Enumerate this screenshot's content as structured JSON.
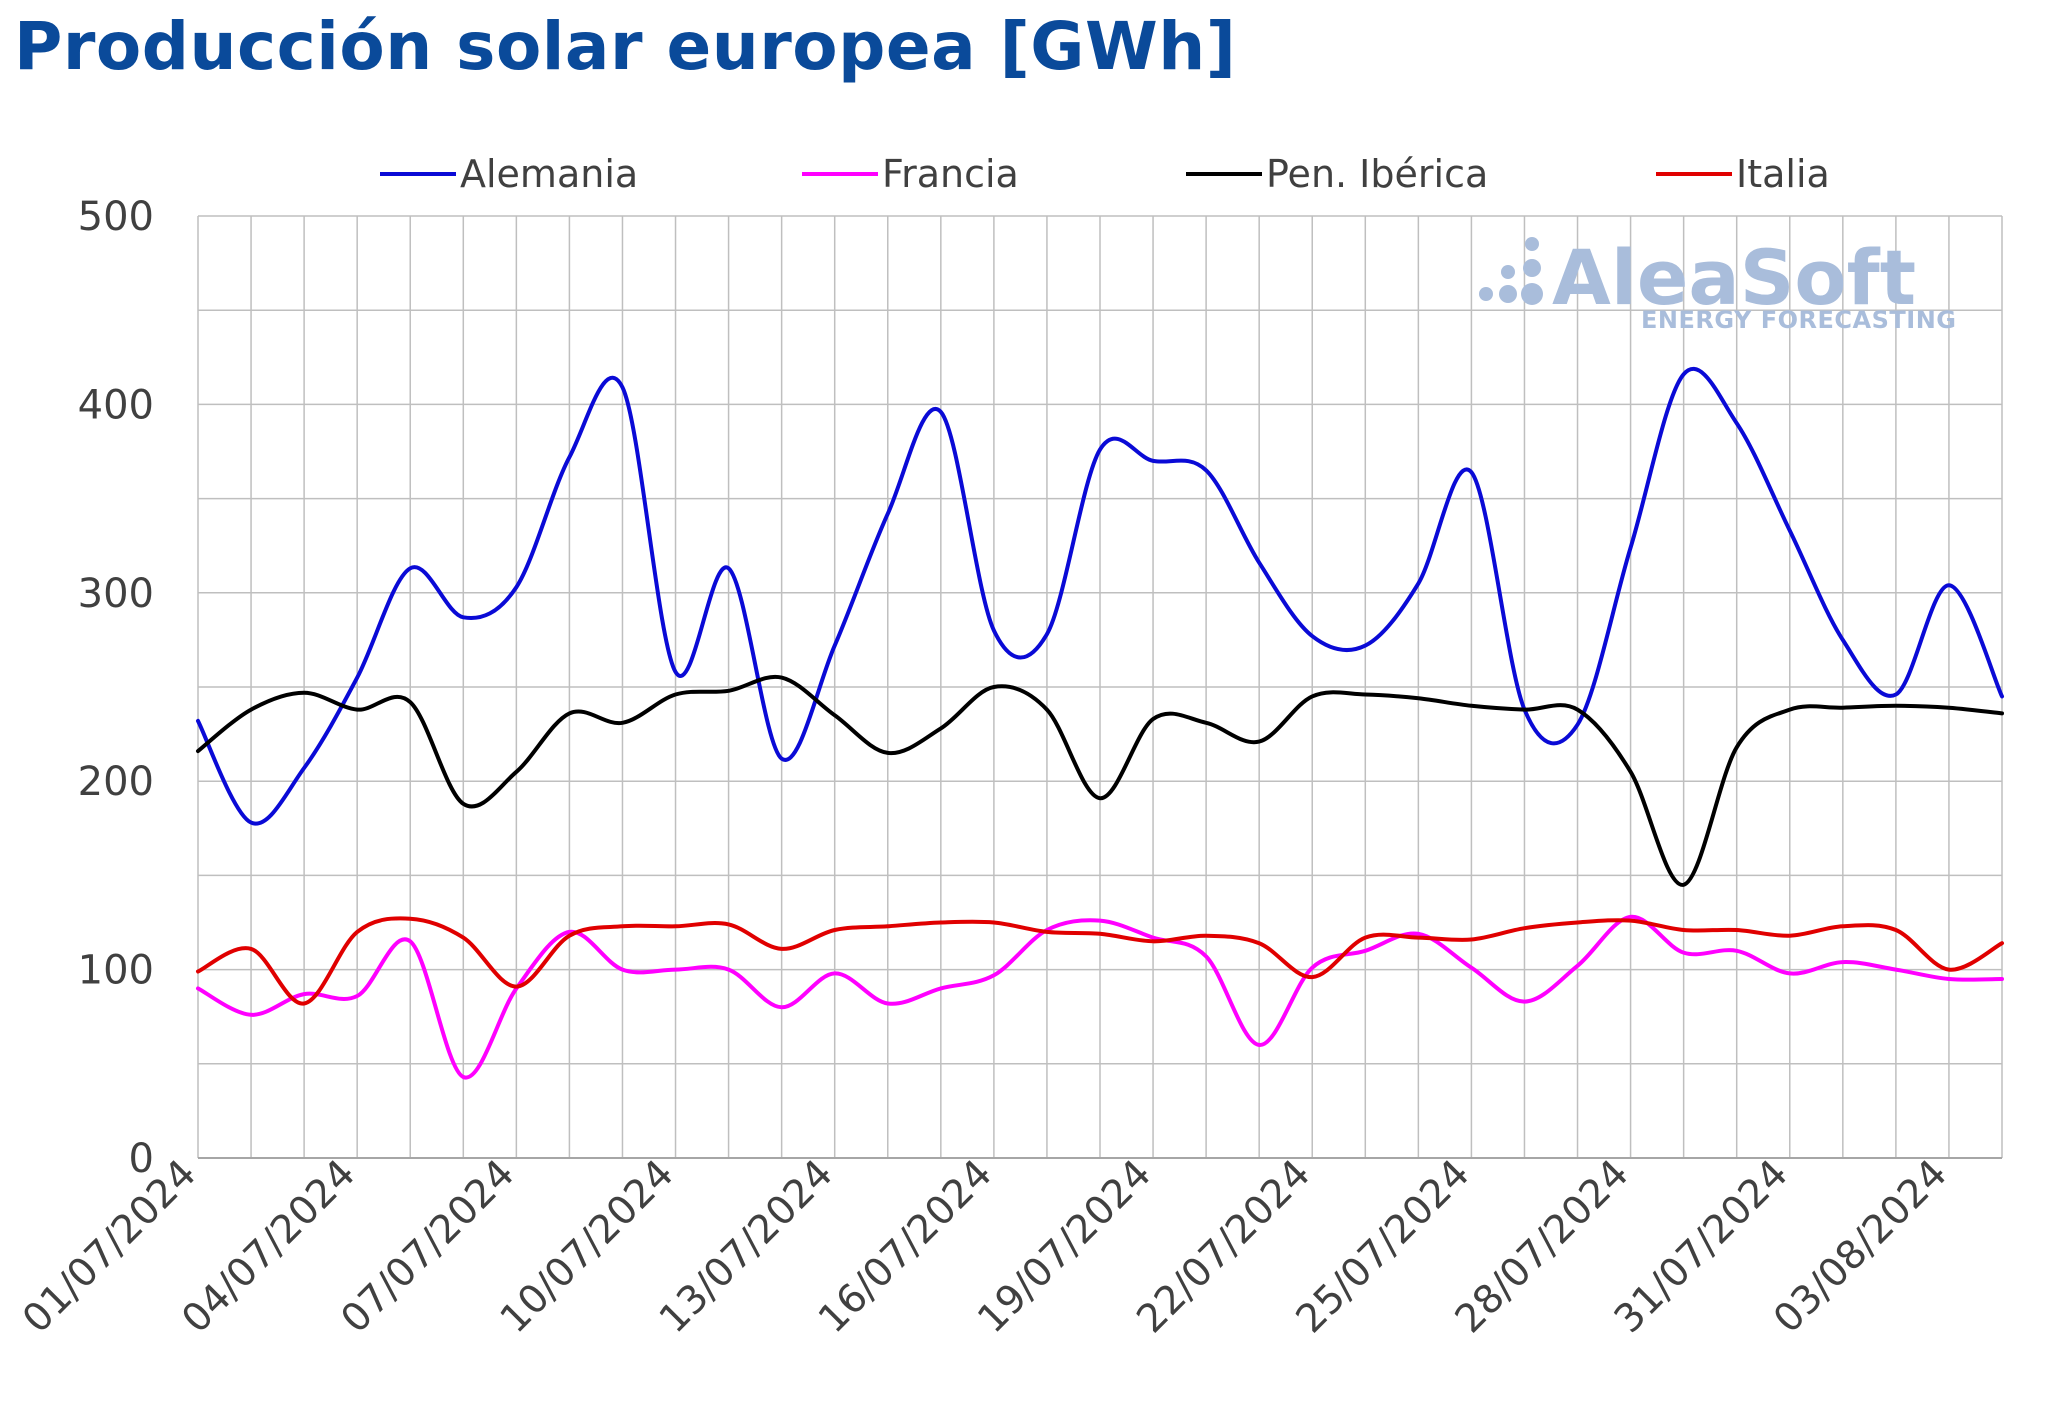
{
  "chart_data": {
    "type": "line",
    "title": "Producción solar europea [GWh]",
    "xlabel": "",
    "ylabel": "",
    "ylim": [
      0,
      500
    ],
    "yticks": [
      0,
      100,
      200,
      300,
      400,
      500
    ],
    "grid": true,
    "legend_position": "top",
    "x": [
      "01/07/2024",
      "02/07/2024",
      "03/07/2024",
      "04/07/2024",
      "05/07/2024",
      "06/07/2024",
      "07/07/2024",
      "08/07/2024",
      "09/07/2024",
      "10/07/2024",
      "11/07/2024",
      "12/07/2024",
      "13/07/2024",
      "14/07/2024",
      "15/07/2024",
      "16/07/2024",
      "17/07/2024",
      "18/07/2024",
      "19/07/2024",
      "20/07/2024",
      "21/07/2024",
      "22/07/2024",
      "23/07/2024",
      "24/07/2024",
      "25/07/2024",
      "26/07/2024",
      "27/07/2024",
      "28/07/2024",
      "29/07/2024",
      "30/07/2024",
      "31/07/2024",
      "01/08/2024",
      "02/08/2024",
      "03/08/2024",
      "04/08/2024"
    ],
    "xtick_labels": [
      "01/07/2024",
      "04/07/2024",
      "07/07/2024",
      "10/07/2024",
      "13/07/2024",
      "16/07/2024",
      "19/07/2024",
      "22/07/2024",
      "25/07/2024",
      "28/07/2024",
      "31/07/2024",
      "03/08/2024"
    ],
    "series": [
      {
        "name": "Alemania",
        "color": "#0a0ad6",
        "values": [
          232,
          178,
          207,
          255,
          313,
          287,
          303,
          372,
          409,
          258,
          313,
          212,
          272,
          342,
          396,
          280,
          278,
          376,
          370,
          365,
          316,
          277,
          272,
          305,
          364,
          238,
          230,
          324,
          416,
          390,
          333,
          275,
          246,
          304,
          245
        ]
      },
      {
        "name": "Francia",
        "color": "#ff00ff",
        "values": [
          90,
          76,
          87,
          86,
          115,
          43,
          90,
          120,
          100,
          100,
          100,
          80,
          98,
          82,
          90,
          97,
          121,
          126,
          117,
          107,
          60,
          101,
          110,
          119,
          101,
          83,
          102,
          128,
          109,
          110,
          98,
          104,
          100,
          95,
          95
        ]
      },
      {
        "name": "Pen. Ibérica",
        "color": "#000000",
        "values": [
          216,
          238,
          247,
          238,
          242,
          188,
          205,
          236,
          231,
          246,
          248,
          255,
          235,
          215,
          228,
          250,
          238,
          191,
          233,
          231,
          221,
          245,
          246,
          244,
          240,
          238,
          238,
          205,
          145,
          218,
          238,
          239,
          240,
          239,
          236
        ]
      },
      {
        "name": "Italia",
        "color": "#e00000",
        "values": [
          99,
          111,
          82,
          120,
          127,
          117,
          91,
          118,
          123,
          123,
          124,
          111,
          121,
          123,
          125,
          125,
          120,
          119,
          115,
          118,
          114,
          96,
          117,
          117,
          116,
          122,
          125,
          126,
          121,
          121,
          118,
          123,
          121,
          100,
          114
        ]
      }
    ]
  },
  "watermark": {
    "brand": "AleaSoft",
    "tagline": "ENERGY FORECASTING"
  }
}
